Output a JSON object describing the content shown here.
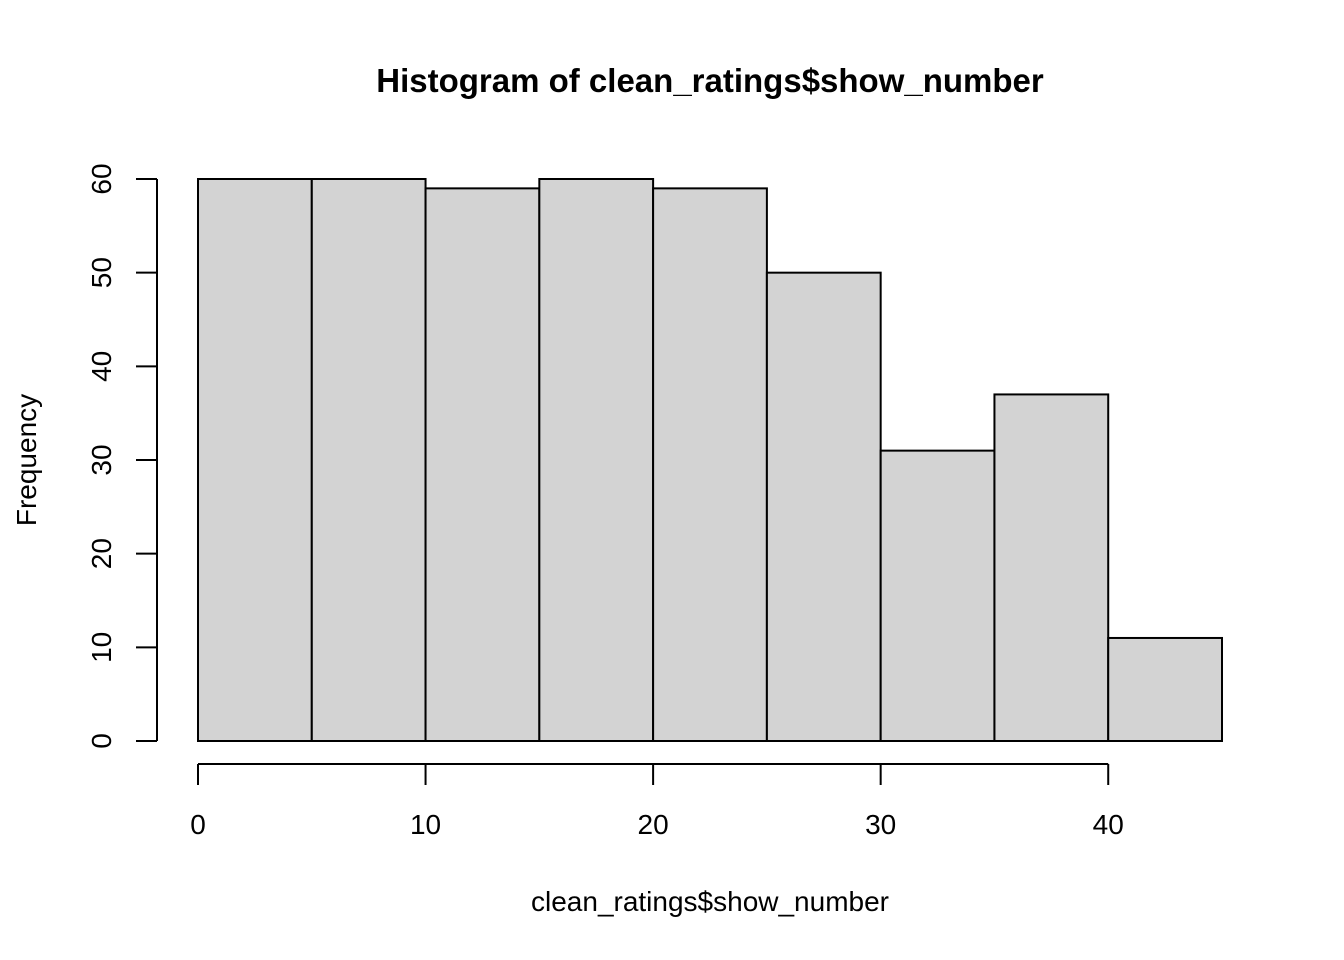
{
  "chart_data": {
    "type": "bar",
    "subtype": "histogram",
    "title": "Histogram of clean_ratings$show_number",
    "xlabel": "clean_ratings$show_number",
    "ylabel": "Frequency",
    "bins": [
      {
        "start": 0,
        "end": 5,
        "count": 60
      },
      {
        "start": 5,
        "end": 10,
        "count": 60
      },
      {
        "start": 10,
        "end": 15,
        "count": 59
      },
      {
        "start": 15,
        "end": 20,
        "count": 60
      },
      {
        "start": 20,
        "end": 25,
        "count": 59
      },
      {
        "start": 25,
        "end": 30,
        "count": 50
      },
      {
        "start": 30,
        "end": 35,
        "count": 31
      },
      {
        "start": 35,
        "end": 40,
        "count": 37
      },
      {
        "start": 40,
        "end": 45,
        "count": 11
      }
    ],
    "xlim": [
      0,
      45
    ],
    "ylim": [
      0,
      60
    ],
    "xticks": [
      0,
      10,
      20,
      30,
      40
    ],
    "yticks": [
      0,
      10,
      20,
      30,
      40,
      50,
      60
    ],
    "bar_fill": "#d3d3d3",
    "bar_stroke": "#000000",
    "grid": false,
    "legend": "none"
  }
}
